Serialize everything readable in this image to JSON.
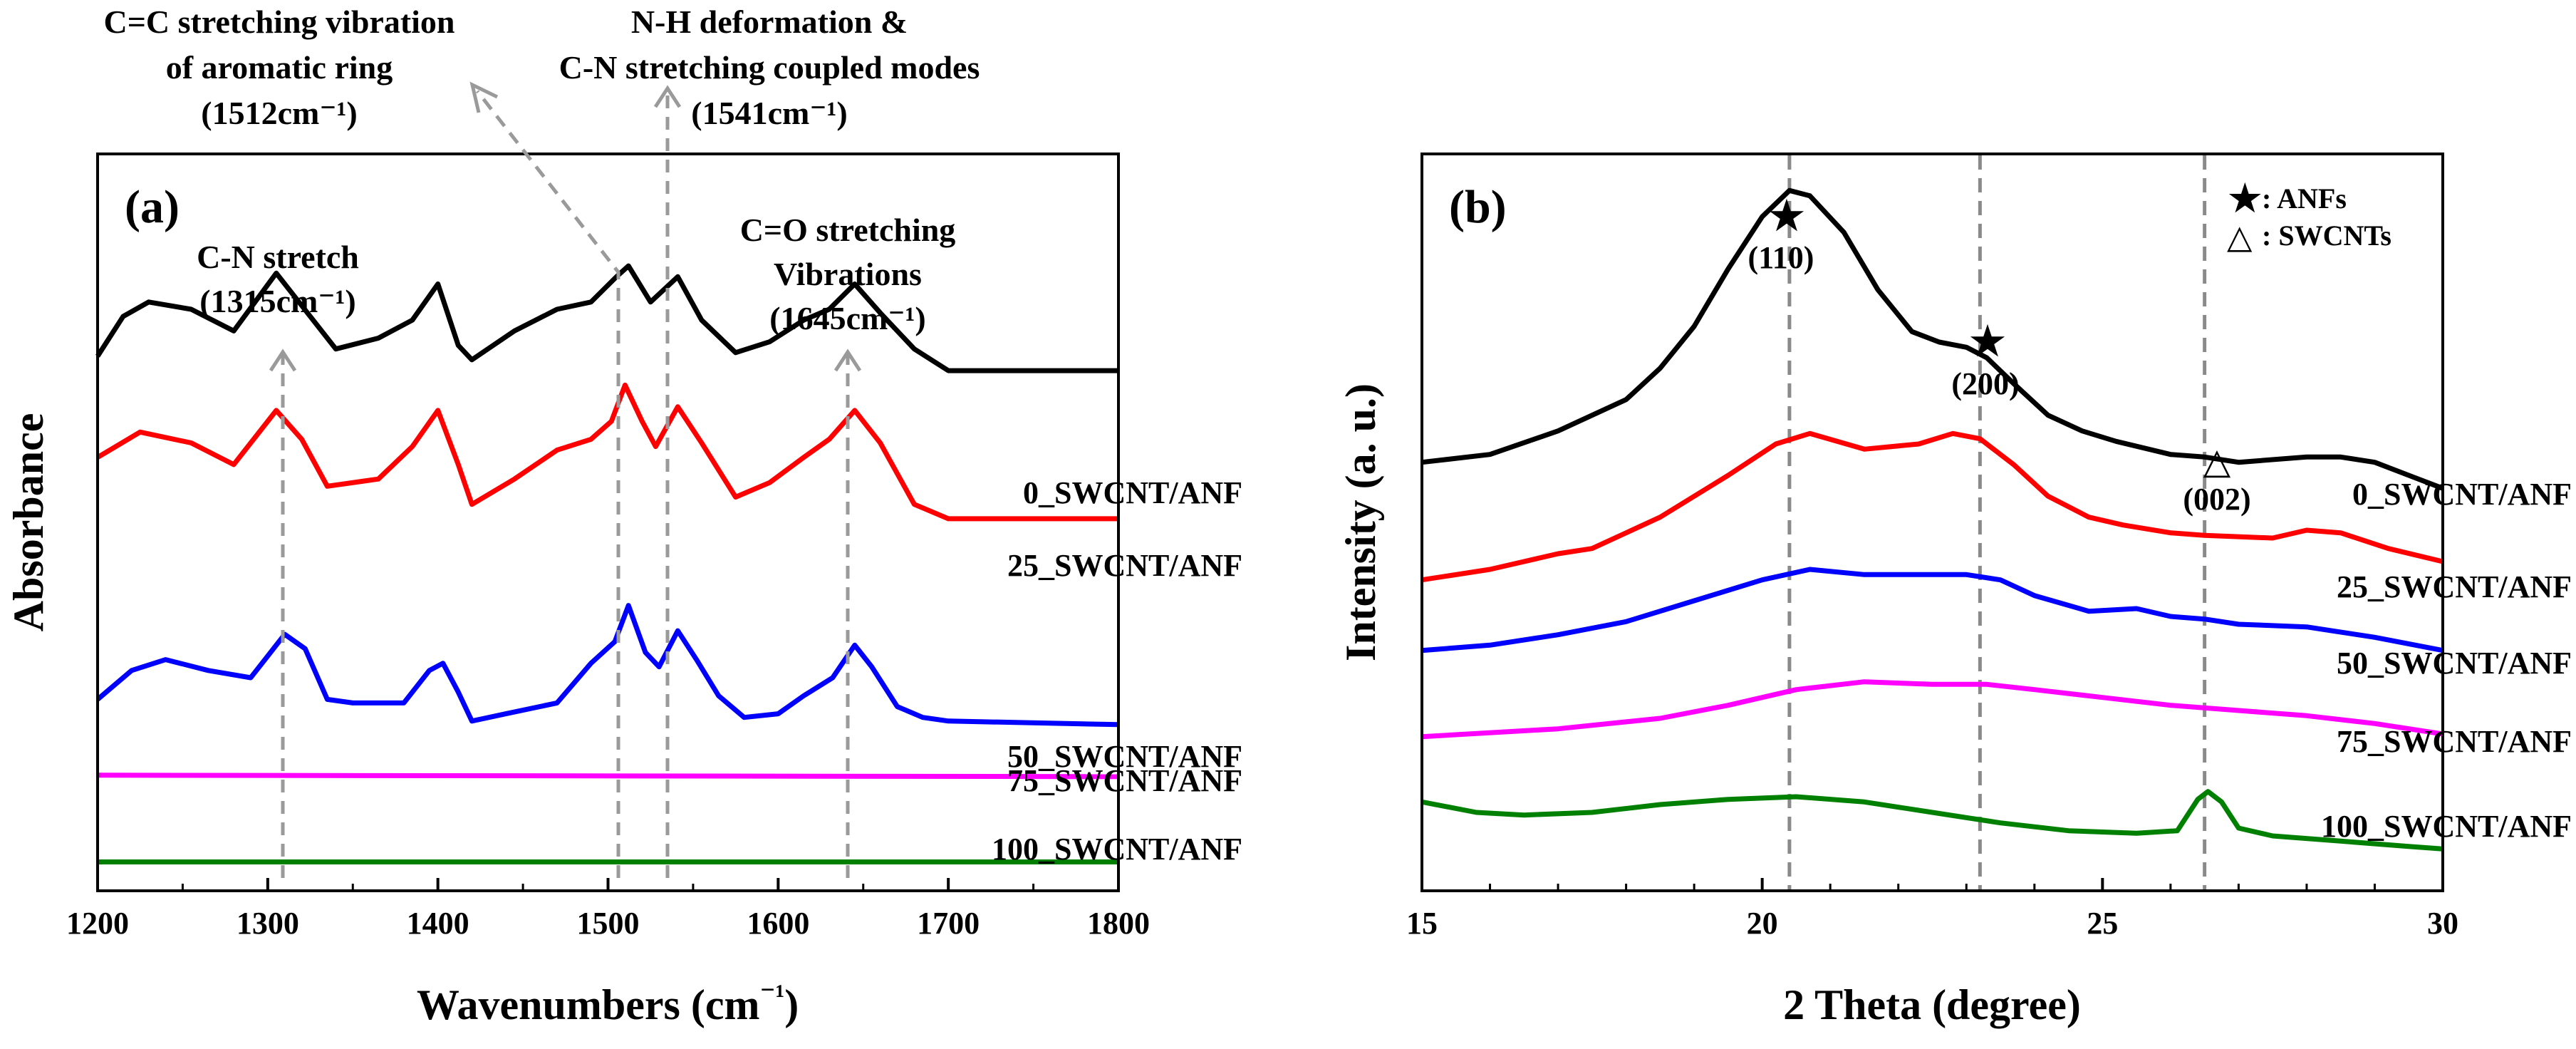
{
  "chart_data": [
    {
      "panel": "(a)",
      "type": "line",
      "xlabel": "Wavenumbers (cm⁻¹)",
      "ylabel": "Absorbance",
      "xlim": [
        1200,
        1800
      ],
      "xticks": [
        "1200",
        "1300",
        "1400",
        "1500",
        "1600",
        "1700",
        "1800"
      ],
      "yticks": [],
      "series": [
        {
          "name": "0_SWCNT/ANF",
          "color": "#000000",
          "offset": 7.2,
          "points": [
            [
              1200,
              0.2
            ],
            [
              1215,
              0.75
            ],
            [
              1230,
              0.95
            ],
            [
              1255,
              0.85
            ],
            [
              1280,
              0.55
            ],
            [
              1305,
              1.35
            ],
            [
              1320,
              0.9
            ],
            [
              1340,
              0.3
            ],
            [
              1365,
              0.45
            ],
            [
              1385,
              0.7
            ],
            [
              1400,
              1.2
            ],
            [
              1412,
              0.35
            ],
            [
              1420,
              0.15
            ],
            [
              1445,
              0.55
            ],
            [
              1470,
              0.85
            ],
            [
              1490,
              0.95
            ],
            [
              1505,
              1.3
            ],
            [
              1512,
              1.45
            ],
            [
              1525,
              0.95
            ],
            [
              1541,
              1.3
            ],
            [
              1555,
              0.7
            ],
            [
              1575,
              0.25
            ],
            [
              1595,
              0.4
            ],
            [
              1615,
              0.7
            ],
            [
              1630,
              0.85
            ],
            [
              1645,
              1.2
            ],
            [
              1660,
              0.8
            ],
            [
              1680,
              0.3
            ],
            [
              1700,
              0
            ],
            [
              1800,
              0
            ]
          ]
        },
        {
          "name": "25_SWCNT/ANF",
          "color": "#ff0000",
          "offset": 5.15,
          "points": [
            [
              1200,
              0.85
            ],
            [
              1225,
              1.2
            ],
            [
              1255,
              1.05
            ],
            [
              1280,
              0.75
            ],
            [
              1305,
              1.5
            ],
            [
              1320,
              1.1
            ],
            [
              1335,
              0.45
            ],
            [
              1365,
              0.55
            ],
            [
              1385,
              1.0
            ],
            [
              1400,
              1.5
            ],
            [
              1412,
              0.75
            ],
            [
              1420,
              0.2
            ],
            [
              1445,
              0.55
            ],
            [
              1470,
              0.95
            ],
            [
              1490,
              1.1
            ],
            [
              1502,
              1.35
            ],
            [
              1510,
              1.85
            ],
            [
              1520,
              1.35
            ],
            [
              1528,
              1.0
            ],
            [
              1541,
              1.55
            ],
            [
              1555,
              1.05
            ],
            [
              1575,
              0.3
            ],
            [
              1595,
              0.5
            ],
            [
              1615,
              0.85
            ],
            [
              1630,
              1.1
            ],
            [
              1645,
              1.5
            ],
            [
              1660,
              1.05
            ],
            [
              1680,
              0.2
            ],
            [
              1700,
              0
            ],
            [
              1800,
              0
            ]
          ]
        },
        {
          "name": "50_SWCNT/ANF",
          "color": "#0000ff",
          "offset": 2.65,
          "points": [
            [
              1200,
              0
            ],
            [
              1220,
              0.4
            ],
            [
              1240,
              0.55
            ],
            [
              1265,
              0.4
            ],
            [
              1290,
              0.3
            ],
            [
              1310,
              0.9
            ],
            [
              1322,
              0.7
            ],
            [
              1335,
              0.0
            ],
            [
              1350,
              -0.05
            ],
            [
              1380,
              -0.05
            ],
            [
              1395,
              0.4
            ],
            [
              1403,
              0.5
            ],
            [
              1412,
              0.1
            ],
            [
              1420,
              -0.3
            ],
            [
              1440,
              -0.2
            ],
            [
              1470,
              -0.05
            ],
            [
              1490,
              0.5
            ],
            [
              1504,
              0.8
            ],
            [
              1512,
              1.3
            ],
            [
              1522,
              0.65
            ],
            [
              1530,
              0.45
            ],
            [
              1541,
              0.95
            ],
            [
              1552,
              0.55
            ],
            [
              1565,
              0.05
            ],
            [
              1580,
              -0.25
            ],
            [
              1600,
              -0.2
            ],
            [
              1615,
              0.05
            ],
            [
              1632,
              0.3
            ],
            [
              1645,
              0.75
            ],
            [
              1655,
              0.45
            ],
            [
              1670,
              -0.1
            ],
            [
              1685,
              -0.25
            ],
            [
              1700,
              -0.3
            ],
            [
              1800,
              -0.35
            ]
          ]
        },
        {
          "name": "75_SWCNT/ANF",
          "color": "#ff00ff",
          "offset": 1.6,
          "points": [
            [
              1200,
              0
            ],
            [
              1800,
              -0.02
            ]
          ]
        },
        {
          "name": "100_SWCNT/ANF",
          "color": "#008000",
          "offset": 0.4,
          "points": [
            [
              1200,
              0
            ],
            [
              1800,
              0
            ]
          ]
        }
      ],
      "legend_labels": [
        "0_SWCNT/ANF",
        "25_SWCNT/ANF",
        "50_SWCNT/ANF",
        "75_SWCNT/ANF",
        "100_SWCNT/ANF"
      ],
      "reference_lines": [
        1310,
        1510,
        1537,
        1643
      ],
      "annotations": [
        {
          "lines": [
            "C=C stretching vibration",
            "of aromatic ring",
            "(1512cm⁻¹)"
          ]
        },
        {
          "lines": [
            "N-H deformation &",
            "C-N stretching coupled modes",
            "(1541cm⁻¹)"
          ]
        },
        {
          "lines": [
            "C-N stretch",
            "(1315cm⁻¹)"
          ]
        },
        {
          "lines": [
            "C=O stretching",
            "Vibrations",
            "(1645cm⁻¹)"
          ]
        }
      ]
    },
    {
      "panel": "(b)",
      "type": "line",
      "xlabel": "2 Theta (degree)",
      "ylabel": "Intensity (a. u.)",
      "xlim": [
        15,
        30
      ],
      "xticks": [
        "15",
        "20",
        "25",
        "30"
      ],
      "yticks": [],
      "series": [
        {
          "name": "0_SWCNT/ANF",
          "color": "#000000",
          "offset": 8.2,
          "points": [
            [
              15,
              0
            ],
            [
              16,
              0.15
            ],
            [
              17,
              0.6
            ],
            [
              18,
              1.2
            ],
            [
              18.5,
              1.8
            ],
            [
              19,
              2.6
            ],
            [
              19.5,
              3.7
            ],
            [
              20,
              4.7
            ],
            [
              20.4,
              5.2
            ],
            [
              20.7,
              5.1
            ],
            [
              21.2,
              4.4
            ],
            [
              21.7,
              3.3
            ],
            [
              22.2,
              2.5
            ],
            [
              22.6,
              2.3
            ],
            [
              23,
              2.2
            ],
            [
              23.3,
              2.0
            ],
            [
              23.7,
              1.5
            ],
            [
              24.2,
              0.9
            ],
            [
              24.7,
              0.6
            ],
            [
              25.2,
              0.4
            ],
            [
              26,
              0.15
            ],
            [
              26.5,
              0.1
            ],
            [
              27,
              0
            ],
            [
              28,
              0.1
            ],
            [
              28.5,
              0.1
            ],
            [
              29,
              0
            ],
            [
              29.5,
              -0.25
            ],
            [
              30,
              -0.5
            ]
          ]
        },
        {
          "name": "25_SWCNT/ANF",
          "color": "#ff0000",
          "offset": 5.95,
          "points": [
            [
              15,
              0
            ],
            [
              16,
              0.2
            ],
            [
              17,
              0.5
            ],
            [
              17.5,
              0.6
            ],
            [
              18.5,
              1.2
            ],
            [
              19.5,
              2.0
            ],
            [
              20.2,
              2.6
            ],
            [
              20.7,
              2.8
            ],
            [
              21.5,
              2.5
            ],
            [
              22.3,
              2.6
            ],
            [
              22.8,
              2.8
            ],
            [
              23.2,
              2.7
            ],
            [
              23.7,
              2.2
            ],
            [
              24.2,
              1.6
            ],
            [
              24.8,
              1.2
            ],
            [
              25.3,
              1.05
            ],
            [
              26,
              0.9
            ],
            [
              26.5,
              0.85
            ],
            [
              27.5,
              0.8
            ],
            [
              28,
              0.95
            ],
            [
              28.5,
              0.9
            ],
            [
              29.2,
              0.6
            ],
            [
              30,
              0.35
            ]
          ]
        },
        {
          "name": "50_SWCNT/ANF",
          "color": "#0000ff",
          "offset": 4.6,
          "points": [
            [
              15,
              0
            ],
            [
              16,
              0.1
            ],
            [
              17,
              0.3
            ],
            [
              18,
              0.55
            ],
            [
              19,
              0.95
            ],
            [
              20,
              1.35
            ],
            [
              20.7,
              1.55
            ],
            [
              21.5,
              1.45
            ],
            [
              22.3,
              1.45
            ],
            [
              23,
              1.45
            ],
            [
              23.5,
              1.35
            ],
            [
              24,
              1.05
            ],
            [
              24.8,
              0.75
            ],
            [
              25.5,
              0.8
            ],
            [
              26,
              0.65
            ],
            [
              26.5,
              0.6
            ],
            [
              27,
              0.5
            ],
            [
              28,
              0.45
            ],
            [
              29,
              0.25
            ],
            [
              30,
              0
            ]
          ]
        },
        {
          "name": "75_SWCNT/ANF",
          "color": "#ff00ff",
          "offset": 2.95,
          "points": [
            [
              15,
              0
            ],
            [
              17,
              0.15
            ],
            [
              18.5,
              0.35
            ],
            [
              19.5,
              0.6
            ],
            [
              20.5,
              0.9
            ],
            [
              21.5,
              1.05
            ],
            [
              22.5,
              1.0
            ],
            [
              23.3,
              1.0
            ],
            [
              24,
              0.9
            ],
            [
              25,
              0.75
            ],
            [
              26,
              0.6
            ],
            [
              27,
              0.5
            ],
            [
              28,
              0.4
            ],
            [
              29,
              0.25
            ],
            [
              30,
              0.05
            ]
          ]
        },
        {
          "name": "100_SWCNT/ANF",
          "color": "#008000",
          "offset": 1.7,
          "points": [
            [
              15,
              0
            ],
            [
              15.8,
              -0.2
            ],
            [
              16.5,
              -0.25
            ],
            [
              17.5,
              -0.2
            ],
            [
              18.5,
              -0.05
            ],
            [
              19.5,
              0.05
            ],
            [
              20.5,
              0.1
            ],
            [
              21.5,
              0
            ],
            [
              22.5,
              -0.2
            ],
            [
              23.5,
              -0.4
            ],
            [
              24.5,
              -0.55
            ],
            [
              25.5,
              -0.6
            ],
            [
              26.1,
              -0.55
            ],
            [
              26.4,
              0.05
            ],
            [
              26.55,
              0.2
            ],
            [
              26.75,
              0
            ],
            [
              27,
              -0.5
            ],
            [
              27.5,
              -0.65
            ],
            [
              28.5,
              -0.75
            ],
            [
              29.5,
              -0.85
            ],
            [
              30,
              -0.9
            ]
          ]
        }
      ],
      "legend_labels": [
        "0_SWCNT/ANF",
        "25_SWCNT/ANF",
        "50_SWCNT/ANF",
        "75_SWCNT/ANF",
        "100_SWCNT/ANF"
      ],
      "reference_lines": [
        20.4,
        23.2,
        26.5
      ],
      "peak_labels": [
        {
          "label": "(110)",
          "marker": "★",
          "x": 20.4
        },
        {
          "label": "(200)",
          "marker": "★",
          "x": 23.2
        },
        {
          "label": "(002)",
          "marker": "△",
          "x": 26.5
        }
      ],
      "legend": [
        {
          "symbol": "★",
          "text": ": ANFs"
        },
        {
          "symbol": "△",
          "text": ": SWCNTs"
        }
      ]
    }
  ]
}
